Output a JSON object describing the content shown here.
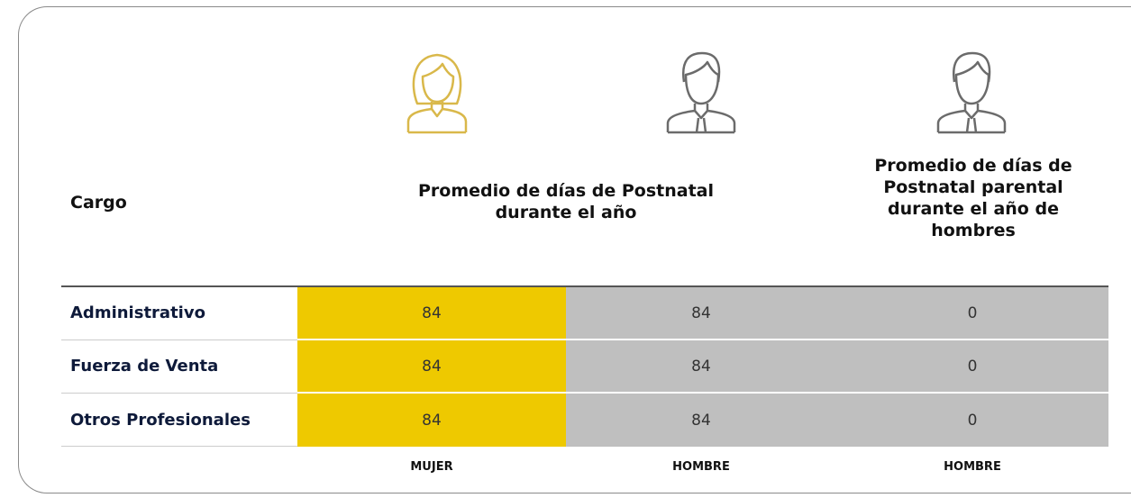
{
  "header": {
    "cargo": "Cargo",
    "group": "Promedio de días de Postnatal durante el año",
    "parental": "Promedio de días de Postnatal parental durante el año de hombres"
  },
  "table": {
    "rows": [
      [
        "Administrativo",
        84,
        84,
        0
      ],
      [
        "Fuerza de Venta",
        84,
        84,
        0
      ],
      [
        "Otros Profesionales",
        84,
        84,
        0
      ]
    ]
  },
  "footer": [
    "MUJER",
    "HOMBRE",
    "HOMBRE"
  ]
}
